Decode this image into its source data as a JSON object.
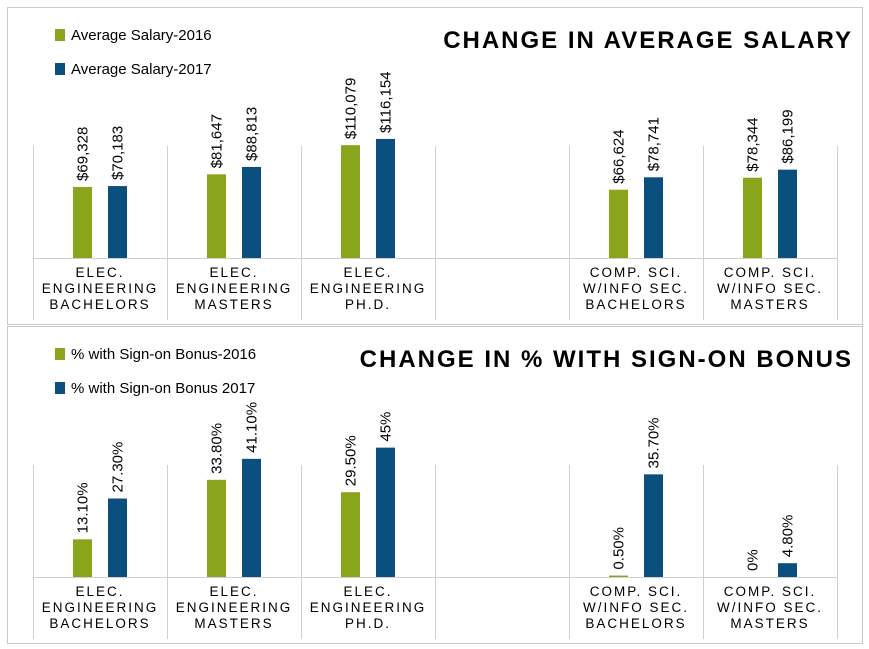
{
  "chart_data": [
    {
      "type": "bar",
      "title": "CHANGE IN AVERAGE SALARY",
      "categories": [
        [
          "ELEC.",
          "ENGINEERING",
          "BACHELORS"
        ],
        [
          "ELEC.",
          "ENGINEERING",
          "MASTERS"
        ],
        [
          "ELEC.",
          "ENGINEERING",
          "PH.D."
        ],
        [
          "",
          "",
          ""
        ],
        [
          "COMP. SCI.",
          "W/INFO SEC.",
          "BACHELORS"
        ],
        [
          "COMP. SCI.",
          "W/INFO SEC.",
          "MASTERS"
        ]
      ],
      "series": [
        {
          "name": "Average Salary-2016",
          "color": "#8aa51c",
          "values": [
            69328,
            81647,
            110079,
            null,
            66624,
            78344
          ],
          "labels": [
            "$69,328",
            "$81,647",
            "$110,079",
            "",
            "$66,624",
            "$78,344"
          ]
        },
        {
          "name": "Average Salary-2017",
          "color": "#0b4f7e",
          "values": [
            70183,
            88813,
            116154,
            null,
            78741,
            86199
          ],
          "labels": [
            "$70,183",
            "$88,813",
            "$116,154",
            "",
            "$78,741",
            "$86,199"
          ]
        }
      ],
      "ylim": [
        0,
        200000
      ],
      "legend": "top-left",
      "grid": false
    },
    {
      "type": "bar",
      "title": "CHANGE IN % WITH SIGN-ON BONUS",
      "categories": [
        [
          "ELEC.",
          "ENGINEERING",
          "BACHELORS"
        ],
        [
          "ELEC.",
          "ENGINEERING",
          "MASTERS"
        ],
        [
          "ELEC.",
          "ENGINEERING",
          "PH.D."
        ],
        [
          "",
          "",
          ""
        ],
        [
          "COMP. SCI.",
          "W/INFO SEC.",
          "BACHELORS"
        ],
        [
          "COMP. SCI.",
          "W/INFO SEC.",
          "MASTERS"
        ]
      ],
      "series": [
        {
          "name": "% with Sign-on Bonus-2016",
          "color": "#8aa51c",
          "values": [
            13.1,
            33.8,
            29.5,
            null,
            0.5,
            0
          ],
          "labels": [
            "13.10%",
            "33.80%",
            "29.50%",
            "",
            "0.50%",
            "0%"
          ]
        },
        {
          "name": "% with Sign-on Bonus 2017",
          "color": "#0b4f7e",
          "values": [
            27.3,
            41.1,
            45,
            null,
            35.7,
            4.8
          ],
          "labels": [
            "27.30%",
            "41.10%",
            "45%",
            "",
            "35.70%",
            "4.80%"
          ]
        }
      ],
      "ylim": [
        0,
        80
      ],
      "legend": "top-left",
      "grid": false
    }
  ]
}
